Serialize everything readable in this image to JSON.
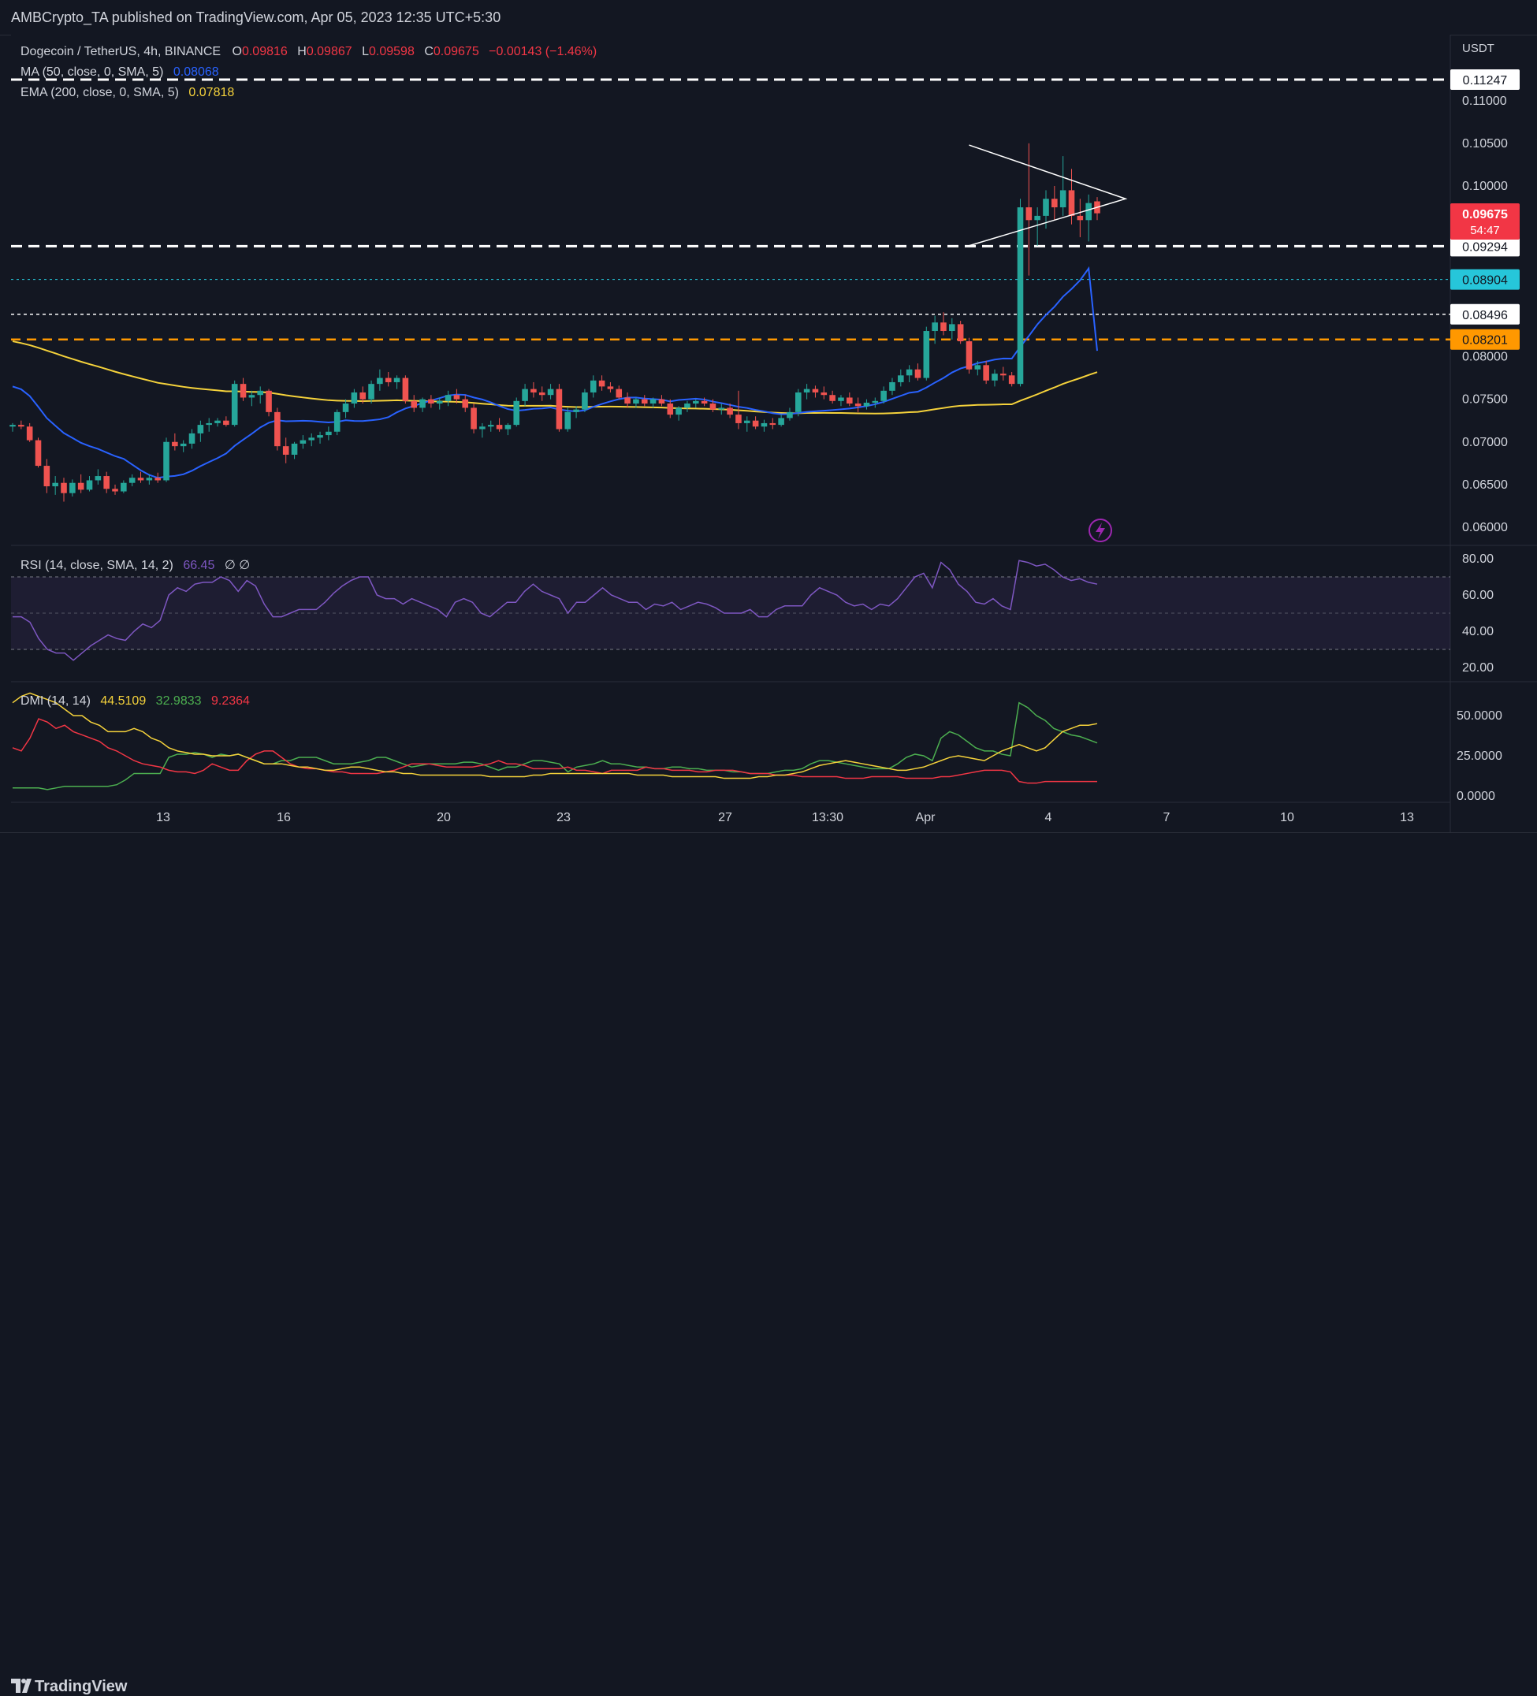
{
  "header": {
    "publisher": "AMBCrypto_TA published on TradingView.com, Apr 05, 2023 12:35 UTC+5:30"
  },
  "footer": {
    "brand": "TradingView"
  },
  "legend": {
    "symbol": "Dogecoin / TetherUS, 4h, BINANCE",
    "o_label": "O",
    "o": "0.09816",
    "h_label": "H",
    "h": "0.09867",
    "l_label": "L",
    "l": "0.09598",
    "c_label": "C",
    "c": "0.09675",
    "change": "−0.00143 (−1.46%)",
    "ma_label": "MA (50, close, 0, SMA, 5)",
    "ma_value": "0.08068",
    "ema_label": "EMA (200, close, 0, SMA, 5)",
    "ema_value": "0.07818",
    "rsi_label": "RSI (14, close, SMA, 14, 2)",
    "rsi_value": "66.45",
    "rsi_extra": "∅ ∅",
    "dmi_label": "DMI (14, 14)",
    "dmi_adx": "44.5109",
    "dmi_plus": "32.9833",
    "dmi_minus": "9.2364"
  },
  "price_scale": {
    "currency": "USDT",
    "ticks": [
      "0.11000",
      "0.10500",
      "0.10000",
      "0.08000",
      "0.07500",
      "0.07000",
      "0.06500",
      "0.06000"
    ],
    "ticks_values": [
      0.11,
      0.105,
      0.1,
      0.08,
      0.075,
      0.07,
      0.065,
      0.06
    ],
    "level_labels": [
      {
        "text": "0.11247",
        "value": 0.11247,
        "bg": "#ffffff",
        "fg": "#131722"
      },
      {
        "text": "0.09294",
        "value": 0.09294,
        "bg": "#ffffff",
        "fg": "#131722"
      },
      {
        "text": "0.08904",
        "value": 0.08904,
        "bg": "#26c6da",
        "fg": "#131722"
      },
      {
        "text": "0.08496",
        "value": 0.08496,
        "bg": "#ffffff",
        "fg": "#131722"
      },
      {
        "text": "0.08201",
        "value": 0.08201,
        "bg": "#ff9800",
        "fg": "#131722"
      }
    ],
    "last_price": "0.09675",
    "countdown": "54:47"
  },
  "rsi_scale": {
    "ticks": [
      "80.00",
      "60.00",
      "40.00",
      "20.00"
    ],
    "values": [
      80,
      60,
      40,
      20
    ]
  },
  "dmi_scale": {
    "ticks": [
      "50.0000",
      "25.0000",
      "0.0000"
    ],
    "values": [
      50,
      25,
      0
    ]
  },
  "time_axis": {
    "labels": [
      "13",
      "16",
      "20",
      "23",
      "27",
      "13:30",
      "Apr",
      "4",
      "7",
      "10",
      "13"
    ]
  },
  "colors": {
    "up": "#26a69a",
    "down": "#ef5350",
    "ma": "#2962ff",
    "ema": "#f5d23b",
    "rsi": "#7e57c2",
    "adx": "#f5d23b",
    "di_plus": "#4caf50",
    "di_minus": "#f23645",
    "support_white": "#ffffff",
    "support_cyan": "#26c6da",
    "support_orange": "#ff9800"
  },
  "chart_data": {
    "type": "candlestick",
    "symbol": "Dogecoin / TetherUS",
    "interval": "4h",
    "ylim": [
      0.0575,
      0.115
    ],
    "candles_ohlc": [
      [
        0.0718,
        0.0722,
        0.0712,
        0.072
      ],
      [
        0.072,
        0.0725,
        0.0715,
        0.0718
      ],
      [
        0.0718,
        0.0722,
        0.07,
        0.0702
      ],
      [
        0.0702,
        0.0705,
        0.067,
        0.0672
      ],
      [
        0.0672,
        0.068,
        0.064,
        0.0648
      ],
      [
        0.0648,
        0.066,
        0.0638,
        0.0652
      ],
      [
        0.0652,
        0.0658,
        0.063,
        0.064
      ],
      [
        0.064,
        0.0656,
        0.0636,
        0.0652
      ],
      [
        0.0652,
        0.0662,
        0.064,
        0.0644
      ],
      [
        0.0644,
        0.066,
        0.0642,
        0.0655
      ],
      [
        0.0655,
        0.0668,
        0.065,
        0.066
      ],
      [
        0.066,
        0.0665,
        0.064,
        0.0645
      ],
      [
        0.0645,
        0.065,
        0.0638,
        0.0642
      ],
      [
        0.0642,
        0.0655,
        0.064,
        0.0652
      ],
      [
        0.0652,
        0.0662,
        0.0648,
        0.0658
      ],
      [
        0.0658,
        0.0665,
        0.0652,
        0.0655
      ],
      [
        0.0655,
        0.0662,
        0.065,
        0.0658
      ],
      [
        0.0658,
        0.0664,
        0.0652,
        0.0655
      ],
      [
        0.0655,
        0.0705,
        0.0653,
        0.07
      ],
      [
        0.07,
        0.071,
        0.069,
        0.0695
      ],
      [
        0.0695,
        0.0702,
        0.0688,
        0.0698
      ],
      [
        0.0698,
        0.0715,
        0.0692,
        0.071
      ],
      [
        0.071,
        0.0725,
        0.07,
        0.072
      ],
      [
        0.072,
        0.0728,
        0.0712,
        0.0722
      ],
      [
        0.0722,
        0.0728,
        0.0718,
        0.0725
      ],
      [
        0.0725,
        0.073,
        0.0718,
        0.072
      ],
      [
        0.072,
        0.0772,
        0.0718,
        0.0768
      ],
      [
        0.0768,
        0.0775,
        0.0748,
        0.0752
      ],
      [
        0.0752,
        0.076,
        0.0742,
        0.0755
      ],
      [
        0.0755,
        0.0765,
        0.0745,
        0.076
      ],
      [
        0.076,
        0.0762,
        0.073,
        0.0735
      ],
      [
        0.0735,
        0.074,
        0.069,
        0.0695
      ],
      [
        0.0695,
        0.0705,
        0.0675,
        0.0685
      ],
      [
        0.0685,
        0.07,
        0.068,
        0.0698
      ],
      [
        0.0698,
        0.0708,
        0.0692,
        0.0702
      ],
      [
        0.0702,
        0.071,
        0.0695,
        0.0705
      ],
      [
        0.0705,
        0.0712,
        0.0698,
        0.0708
      ],
      [
        0.0708,
        0.0718,
        0.0702,
        0.0712
      ],
      [
        0.0712,
        0.0738,
        0.0708,
        0.0735
      ],
      [
        0.0735,
        0.075,
        0.0728,
        0.0745
      ],
      [
        0.0745,
        0.0762,
        0.074,
        0.0758
      ],
      [
        0.0758,
        0.0765,
        0.0745,
        0.075
      ],
      [
        0.075,
        0.0772,
        0.0745,
        0.0768
      ],
      [
        0.0768,
        0.0785,
        0.076,
        0.0775
      ],
      [
        0.0775,
        0.0782,
        0.0765,
        0.077
      ],
      [
        0.077,
        0.0778,
        0.0762,
        0.0775
      ],
      [
        0.0775,
        0.0778,
        0.0745,
        0.0748
      ],
      [
        0.0748,
        0.0755,
        0.0735,
        0.074
      ],
      [
        0.074,
        0.0752,
        0.0735,
        0.075
      ],
      [
        0.075,
        0.0755,
        0.074,
        0.0745
      ],
      [
        0.0745,
        0.0752,
        0.0738,
        0.0748
      ],
      [
        0.0748,
        0.076,
        0.0742,
        0.0755
      ],
      [
        0.0755,
        0.0762,
        0.0745,
        0.075
      ],
      [
        0.075,
        0.0755,
        0.0735,
        0.074
      ],
      [
        0.074,
        0.0745,
        0.071,
        0.0715
      ],
      [
        0.0715,
        0.0722,
        0.0705,
        0.0718
      ],
      [
        0.0718,
        0.0725,
        0.0712,
        0.072
      ],
      [
        0.072,
        0.0728,
        0.0712,
        0.0715
      ],
      [
        0.0715,
        0.0722,
        0.0708,
        0.072
      ],
      [
        0.072,
        0.0752,
        0.0718,
        0.0748
      ],
      [
        0.0748,
        0.0768,
        0.0742,
        0.0762
      ],
      [
        0.0762,
        0.077,
        0.0752,
        0.0758
      ],
      [
        0.0758,
        0.0765,
        0.0748,
        0.0755
      ],
      [
        0.0755,
        0.0768,
        0.075,
        0.0762
      ],
      [
        0.0762,
        0.0768,
        0.0712,
        0.0715
      ],
      [
        0.0715,
        0.074,
        0.0712,
        0.0735
      ],
      [
        0.0735,
        0.0742,
        0.0728,
        0.0738
      ],
      [
        0.0738,
        0.0762,
        0.0735,
        0.0758
      ],
      [
        0.0758,
        0.0778,
        0.0752,
        0.0772
      ],
      [
        0.0772,
        0.0778,
        0.076,
        0.0765
      ],
      [
        0.0765,
        0.077,
        0.0758,
        0.0762
      ],
      [
        0.0762,
        0.0766,
        0.075,
        0.0752
      ],
      [
        0.0752,
        0.0758,
        0.074,
        0.0745
      ],
      [
        0.0745,
        0.0752,
        0.074,
        0.075
      ],
      [
        0.075,
        0.0755,
        0.0742,
        0.0745
      ],
      [
        0.0745,
        0.0752,
        0.074,
        0.075
      ],
      [
        0.075,
        0.0755,
        0.0742,
        0.0745
      ],
      [
        0.0745,
        0.075,
        0.0728,
        0.0732
      ],
      [
        0.0732,
        0.0742,
        0.0725,
        0.074
      ],
      [
        0.074,
        0.0748,
        0.0735,
        0.0745
      ],
      [
        0.0745,
        0.075,
        0.074,
        0.0748
      ],
      [
        0.0748,
        0.0752,
        0.0742,
        0.0745
      ],
      [
        0.0745,
        0.075,
        0.0735,
        0.0738
      ],
      [
        0.0738,
        0.0745,
        0.0732,
        0.074
      ],
      [
        0.074,
        0.0745,
        0.0728,
        0.0732
      ],
      [
        0.0732,
        0.076,
        0.0715,
        0.0722
      ],
      [
        0.0722,
        0.073,
        0.0712,
        0.0725
      ],
      [
        0.0725,
        0.073,
        0.0715,
        0.0718
      ],
      [
        0.0718,
        0.0726,
        0.0712,
        0.0722
      ],
      [
        0.0722,
        0.0728,
        0.0715,
        0.072
      ],
      [
        0.072,
        0.0732,
        0.0718,
        0.0728
      ],
      [
        0.0728,
        0.074,
        0.0725,
        0.0735
      ],
      [
        0.0735,
        0.0762,
        0.073,
        0.0758
      ],
      [
        0.0758,
        0.0768,
        0.075,
        0.0762
      ],
      [
        0.0762,
        0.0766,
        0.0752,
        0.0758
      ],
      [
        0.0758,
        0.0765,
        0.075,
        0.0755
      ],
      [
        0.0755,
        0.076,
        0.0745,
        0.0748
      ],
      [
        0.0748,
        0.0755,
        0.0742,
        0.0752
      ],
      [
        0.0752,
        0.0758,
        0.0742,
        0.0745
      ],
      [
        0.0745,
        0.0752,
        0.0735,
        0.0742
      ],
      [
        0.0742,
        0.075,
        0.0738,
        0.0746
      ],
      [
        0.0746,
        0.0752,
        0.074,
        0.0748
      ],
      [
        0.0748,
        0.0765,
        0.0745,
        0.076
      ],
      [
        0.076,
        0.0775,
        0.0755,
        0.077
      ],
      [
        0.077,
        0.0785,
        0.0765,
        0.0778
      ],
      [
        0.0778,
        0.079,
        0.077,
        0.0785
      ],
      [
        0.0785,
        0.0792,
        0.0772,
        0.0775
      ],
      [
        0.0775,
        0.0835,
        0.0772,
        0.083
      ],
      [
        0.083,
        0.0848,
        0.0815,
        0.084
      ],
      [
        0.084,
        0.0852,
        0.0825,
        0.083
      ],
      [
        0.083,
        0.0845,
        0.082,
        0.0838
      ],
      [
        0.0838,
        0.0842,
        0.0815,
        0.0818
      ],
      [
        0.0818,
        0.0822,
        0.078,
        0.0785
      ],
      [
        0.0785,
        0.0795,
        0.0778,
        0.079
      ],
      [
        0.079,
        0.0795,
        0.0768,
        0.0772
      ],
      [
        0.0772,
        0.0785,
        0.0765,
        0.078
      ],
      [
        0.078,
        0.0788,
        0.0772,
        0.0778
      ],
      [
        0.0778,
        0.0782,
        0.0765,
        0.0768
      ],
      [
        0.0768,
        0.0985,
        0.0765,
        0.0975
      ],
      [
        0.0975,
        0.105,
        0.0895,
        0.096
      ],
      [
        0.096,
        0.0975,
        0.093,
        0.0965
      ],
      [
        0.0965,
        0.0995,
        0.095,
        0.0985
      ],
      [
        0.0985,
        0.1,
        0.096,
        0.0975
      ],
      [
        0.0975,
        0.1035,
        0.0965,
        0.0995
      ],
      [
        0.0995,
        0.102,
        0.0955,
        0.0965
      ],
      [
        0.0965,
        0.0985,
        0.094,
        0.096
      ],
      [
        0.096,
        0.099,
        0.0935,
        0.098
      ],
      [
        0.0982,
        0.0987,
        0.096,
        0.0968
      ]
    ],
    "ma50_start": 0.0765,
    "ma50_end": 0.08068,
    "ema200_start": 0.082,
    "ema200_end": 0.07818,
    "horizontal_levels": [
      0.11247,
      0.09294,
      0.08904,
      0.08496,
      0.08201
    ],
    "triangle_apex": 0.0985,
    "rsi": [
      48,
      48,
      45,
      36,
      30,
      28,
      28,
      24,
      28,
      32,
      35,
      38,
      36,
      35,
      40,
      44,
      42,
      46,
      60,
      64,
      62,
      66,
      67,
      67,
      70,
      68,
      62,
      68,
      65,
      55,
      48,
      48,
      50,
      52,
      52,
      52,
      56,
      61,
      65,
      68,
      70,
      70,
      60,
      58,
      58,
      55,
      58,
      56,
      54,
      52,
      48,
      56,
      58,
      56,
      50,
      48,
      52,
      56,
      56,
      62,
      66,
      62,
      60,
      58,
      50,
      56,
      56,
      60,
      64,
      60,
      58,
      56,
      56,
      52,
      55,
      54,
      56,
      52,
      54,
      56,
      55,
      53,
      50,
      50,
      50,
      52,
      48,
      48,
      52,
      54,
      54,
      54,
      60,
      64,
      62,
      60,
      56,
      54,
      55,
      52,
      55,
      54,
      58,
      64,
      70,
      72,
      64,
      78,
      74,
      66,
      62,
      56,
      55,
      58,
      54,
      52,
      79,
      78,
      76,
      77,
      74,
      70,
      68,
      69,
      67,
      66
    ],
    "adx": [
      58,
      62,
      64,
      62,
      60,
      58,
      54,
      50,
      50,
      46,
      44,
      40,
      40,
      40,
      42,
      40,
      36,
      34,
      30,
      28,
      27,
      26,
      26,
      25,
      25,
      25,
      26,
      24,
      22,
      20,
      20,
      20,
      19,
      18,
      18,
      17,
      16,
      16,
      17,
      18,
      18,
      17,
      16,
      15,
      15,
      14,
      14,
      13,
      13,
      13,
      13,
      13,
      13,
      13,
      13,
      12,
      12,
      12,
      12,
      12,
      13,
      13,
      14,
      14,
      14,
      14,
      14,
      14,
      14,
      14,
      14,
      14,
      13,
      13,
      13,
      13,
      12,
      12,
      12,
      12,
      12,
      12,
      11,
      11,
      11,
      11,
      12,
      12,
      13,
      13,
      14,
      15,
      17,
      19,
      20,
      21,
      22,
      21,
      20,
      19,
      18,
      17,
      16,
      16,
      17,
      18,
      20,
      22,
      24,
      25,
      24,
      23,
      22,
      25,
      28,
      30,
      32,
      30,
      28,
      30,
      35,
      40,
      42,
      44,
      44,
      45
    ],
    "di_plus": [
      5,
      5,
      5,
      5,
      4,
      5,
      6,
      6,
      6,
      6,
      6,
      6,
      7,
      10,
      14,
      14,
      14,
      14,
      24,
      26,
      26,
      27,
      26,
      24,
      26,
      25,
      26,
      24,
      22,
      20,
      20,
      22,
      22,
      24,
      24,
      24,
      22,
      20,
      20,
      20,
      21,
      22,
      24,
      24,
      22,
      20,
      18,
      19,
      20,
      20,
      20,
      20,
      21,
      21,
      20,
      18,
      16,
      18,
      18,
      20,
      22,
      22,
      21,
      20,
      15,
      18,
      19,
      20,
      22,
      20,
      20,
      19,
      18,
      18,
      17,
      17,
      18,
      18,
      17,
      17,
      16,
      16,
      16,
      15,
      15,
      14,
      14,
      14,
      15,
      16,
      16,
      17,
      20,
      22,
      22,
      21,
      20,
      19,
      18,
      17,
      17,
      17,
      20,
      24,
      26,
      25,
      22,
      36,
      40,
      38,
      34,
      30,
      28,
      28,
      26,
      25,
      58,
      55,
      50,
      47,
      42,
      40,
      38,
      37,
      35,
      33
    ],
    "di_minus": [
      30,
      28,
      36,
      48,
      46,
      42,
      44,
      40,
      38,
      36,
      34,
      30,
      28,
      25,
      22,
      20,
      19,
      18,
      16,
      15,
      15,
      14,
      16,
      20,
      18,
      16,
      16,
      22,
      26,
      28,
      28,
      24,
      20,
      18,
      17,
      17,
      16,
      15,
      15,
      14,
      14,
      14,
      14,
      15,
      16,
      18,
      20,
      20,
      20,
      19,
      18,
      18,
      18,
      18,
      19,
      20,
      22,
      20,
      20,
      19,
      17,
      17,
      17,
      17,
      18,
      16,
      16,
      15,
      14,
      16,
      16,
      16,
      16,
      18,
      17,
      17,
      16,
      16,
      16,
      15,
      15,
      16,
      16,
      16,
      15,
      14,
      14,
      14,
      13,
      13,
      13,
      12,
      12,
      12,
      12,
      12,
      11,
      11,
      11,
      12,
      12,
      12,
      12,
      11,
      11,
      11,
      11,
      12,
      12,
      13,
      14,
      15,
      16,
      16,
      16,
      15,
      9,
      8,
      8,
      9,
      9,
      9,
      9,
      9,
      9,
      9
    ]
  }
}
